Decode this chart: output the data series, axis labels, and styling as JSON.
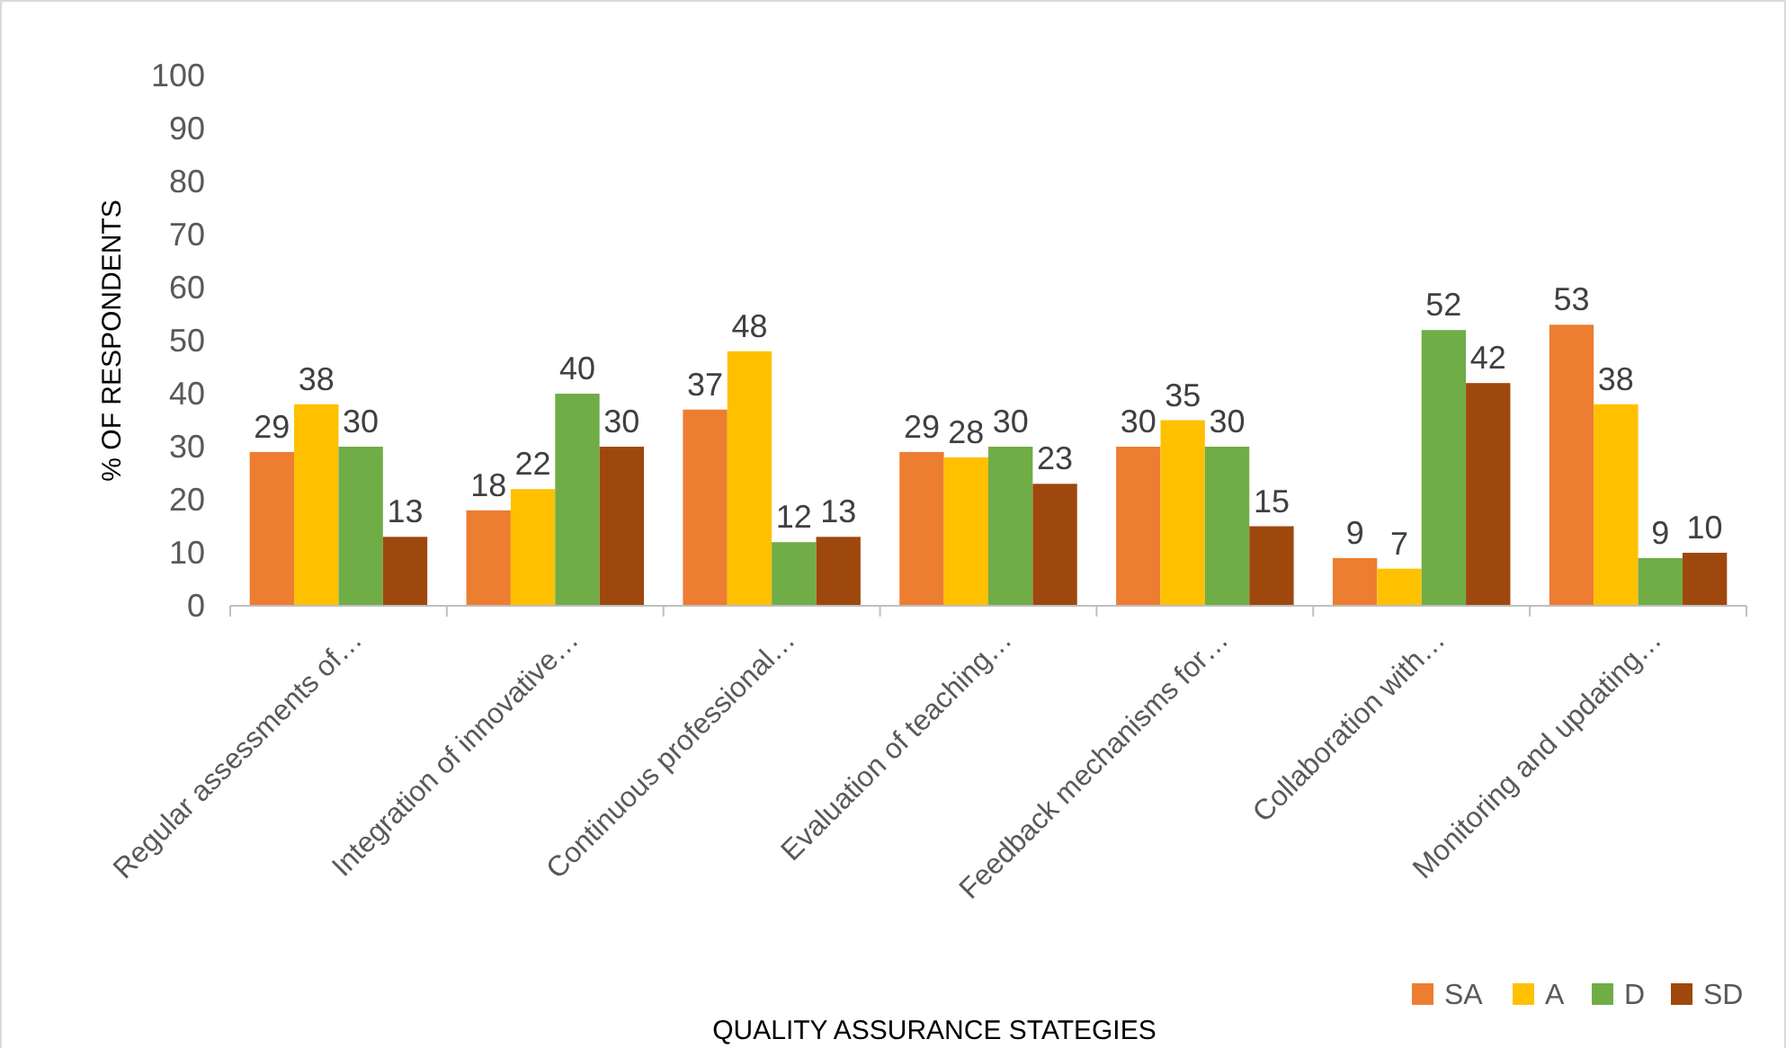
{
  "chart_data": {
    "type": "bar",
    "xlabel": "QUALITY ASSURANCE STATEGIES",
    "ylabel": "% OF RESPONDENTS",
    "categories": [
      "Regular assessments of…",
      "Integration of innovative…",
      "Continuous professional…",
      "Evaluation of teaching…",
      "Feedback mechanisms for…",
      "Collaboration with…",
      "Monitoring and updating…"
    ],
    "series": [
      {
        "name": "SA",
        "color": "#ed7d31",
        "values": [
          29,
          18,
          37,
          29,
          30,
          9,
          53
        ]
      },
      {
        "name": "A",
        "color": "#ffc000",
        "values": [
          38,
          22,
          48,
          28,
          35,
          7,
          38
        ]
      },
      {
        "name": "D",
        "color": "#70ad47",
        "values": [
          30,
          40,
          12,
          30,
          30,
          52,
          9
        ]
      },
      {
        "name": "SD",
        "color": "#9e480e",
        "values": [
          13,
          30,
          13,
          23,
          15,
          42,
          10
        ]
      }
    ],
    "ylim": [
      0,
      100
    ],
    "yticks": [
      0,
      10,
      20,
      30,
      40,
      50,
      60,
      70,
      80,
      90,
      100
    ],
    "grid": false,
    "legend": "bottom right",
    "data_labels": true
  }
}
